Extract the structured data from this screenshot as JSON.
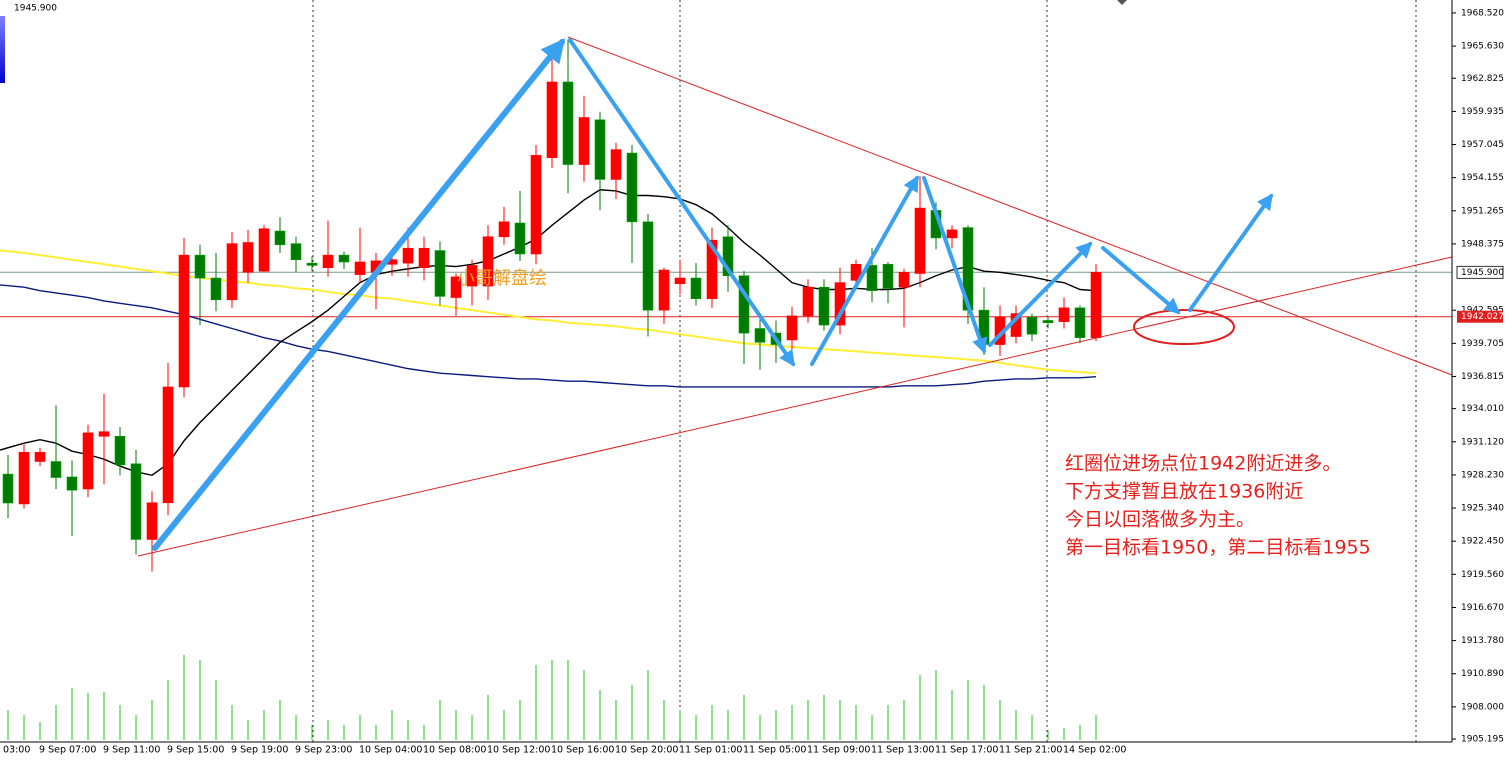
{
  "chart_data": {
    "type": "candlestick",
    "x_label_clipped": "03:00",
    "categories": [
      null,
      null,
      "9 Sep 07:00",
      null,
      null,
      null,
      "9 Sep 11:00",
      null,
      null,
      null,
      "9 Sep 15:00",
      null,
      null,
      null,
      "9 Sep 19:00",
      null,
      null,
      null,
      "9 Sep 23:00",
      null,
      null,
      null,
      "10 Sep 04:00",
      null,
      null,
      null,
      "10 Sep 08:00",
      null,
      null,
      null,
      "10 Sep 12:00",
      null,
      null,
      null,
      "10 Sep 16:00",
      null,
      null,
      null,
      "10 Sep 20:00",
      null,
      null,
      null,
      "11 Sep 01:00",
      null,
      null,
      null,
      "11 Sep 05:00",
      null,
      null,
      null,
      "11 Sep 09:00",
      null,
      null,
      null,
      "11 Sep 13:00",
      null,
      null,
      null,
      "11 Sep 17:00",
      null,
      null,
      null,
      "11 Sep 21:00",
      null,
      null,
      null,
      "14 Sep 02:00",
      null,
      null
    ],
    "open": [
      1928.3,
      1925.7,
      1929.4,
      1929.4,
      1928.05,
      1927.0,
      1931.6,
      1931.6,
      1929.2,
      1922.6,
      1925.8,
      1935.9,
      1947.4,
      1945.4,
      1943.5,
      1945.9,
      1946.0,
      1949.5,
      1948.4,
      1946.7,
      1946.3,
      1947.4,
      1945.7,
      1945.9,
      1946.6,
      1946.7,
      1946.3,
      1947.8,
      1943.7,
      1944.7,
      1944.7,
      1949.0,
      1950.2,
      1947.5,
      1955.9,
      1962.5,
      1955.3,
      1959.2,
      1954.0,
      1956.3,
      1950.3,
      1942.6,
      1944.9,
      1945.4,
      1943.6,
      1949.0,
      1945.6,
      1941.0,
      1940.6,
      1940.0,
      1942.1,
      1944.6,
      1941.3,
      1945.2,
      1946.5,
      1946.6,
      1944.6,
      1945.8,
      1951.3,
      1948.9,
      1949.8,
      1942.6,
      1939.6,
      1940.3,
      1942.0,
      1941.7,
      1941.6,
      1942.8,
      1940.2
    ],
    "high": [
      1929.97,
      1930.9,
      1930.6,
      1934.3,
      1929.5,
      1932.6,
      1935.3,
      1932.4,
      1930.4,
      1926.8,
      1938.0,
      1948.9,
      1948.3,
      1947.6,
      1949.4,
      1949.6,
      1950.0,
      1950.7,
      1949.0,
      1947.3,
      1950.4,
      1947.7,
      1949.8,
      1947.6,
      1947.6,
      1949.8,
      1949.0,
      1948.6,
      1945.8,
      1947.0,
      1950.0,
      1951.6,
      1953.0,
      1957.0,
      1965.3,
      1966.2,
      1961.3,
      1959.9,
      1957.2,
      1957.0,
      1951.0,
      1946.3,
      1947.0,
      1946.7,
      1949.8,
      1950.0,
      1946.0,
      1941.8,
      1941.7,
      1942.9,
      1945.3,
      1945.3,
      1946.3,
      1947.0,
      1948.0,
      1946.8,
      1946.2,
      1954.3,
      1952.0,
      1950.0,
      1950.0,
      1944.6,
      1943.0,
      1943.0,
      1942.3,
      1942.0,
      1943.7,
      1943.0,
      1946.6
    ],
    "low": [
      1924.47,
      1925.3,
      1929.0,
      1927.0,
      1922.9,
      1926.3,
      1927.4,
      1928.2,
      1921.3,
      1919.8,
      1924.7,
      1935.0,
      1941.3,
      1942.5,
      1942.8,
      1945.0,
      1945.9,
      1947.6,
      1945.9,
      1946.0,
      1945.5,
      1946.2,
      1945.0,
      1942.7,
      1945.6,
      1945.5,
      1945.2,
      1943.0,
      1942.1,
      1943.0,
      1943.5,
      1948.3,
      1946.9,
      1946.6,
      1955.0,
      1952.8,
      1953.8,
      1951.3,
      1952.3,
      1946.7,
      1940.3,
      1941.4,
      1944.0,
      1943.0,
      1942.8,
      1944.2,
      1937.9,
      1937.4,
      1938.0,
      1937.8,
      1941.5,
      1940.8,
      1940.5,
      1944.4,
      1943.3,
      1943.2,
      1941.1,
      1944.6,
      1947.9,
      1948.0,
      1941.4,
      1938.7,
      1938.6,
      1939.7,
      1939.9,
      1941.0,
      1941.0,
      1939.7,
      1939.9
    ],
    "close": [
      1925.78,
      1930.2,
      1930.2,
      1928.0,
      1926.9,
      1931.9,
      1932.0,
      1929.1,
      1922.6,
      1925.8,
      1935.9,
      1947.4,
      1945.4,
      1943.5,
      1948.4,
      1948.5,
      1949.7,
      1948.3,
      1947.0,
      1946.5,
      1947.4,
      1946.8,
      1946.8,
      1946.9,
      1947.0,
      1948.0,
      1948.0,
      1943.8,
      1945.5,
      1946.5,
      1949.0,
      1950.3,
      1947.5,
      1956.1,
      1962.5,
      1955.3,
      1959.4,
      1954.0,
      1956.6,
      1950.3,
      1942.6,
      1946.1,
      1945.4,
      1943.6,
      1948.7,
      1945.6,
      1940.6,
      1939.8,
      1939.6,
      1942.1,
      1944.6,
      1941.3,
      1945.0,
      1946.6,
      1944.3,
      1944.5,
      1945.9,
      1951.5,
      1948.9,
      1949.6,
      1942.6,
      1939.6,
      1942.0,
      1942.3,
      1940.5,
      1941.5,
      1942.8,
      1940.2,
      1945.9
    ],
    "volume": [
      30,
      25,
      18,
      35,
      52,
      47,
      48,
      35,
      25,
      40,
      60,
      85,
      80,
      60,
      35,
      20,
      30,
      40,
      25,
      15,
      20,
      15,
      25,
      15,
      30,
      20,
      15,
      40,
      30,
      25,
      45,
      30,
      40,
      75,
      80,
      80,
      70,
      50,
      40,
      55,
      70,
      40,
      30,
      25,
      35,
      30,
      45,
      25,
      30,
      35,
      40,
      45,
      40,
      35,
      25,
      35,
      40,
      65,
      70,
      50,
      60,
      55,
      40,
      30,
      25,
      10,
      12,
      15,
      25
    ],
    "up_color": "#ff0000",
    "down_color": "#007a00",
    "volume_color": "#22c022",
    "series": [
      {
        "color": "#ffee33",
        "values": [
          1947.8,
          1947.6,
          1947.4,
          1947.2,
          1947.0,
          1946.8,
          1946.6,
          1946.4,
          1946.2,
          1946.0,
          1945.8,
          1945.6,
          1945.4,
          1945.3,
          1945.1,
          1945.0,
          1944.8,
          1944.7,
          1944.5,
          1944.4,
          1944.2,
          1944.0,
          1943.9,
          1943.7,
          1943.6,
          1943.4,
          1943.2,
          1943.0,
          1942.8,
          1942.6,
          1942.4,
          1942.2,
          1942.0,
          1941.8,
          1941.7,
          1941.5,
          1941.4,
          1941.3,
          1941.2,
          1941.0,
          1940.9,
          1940.7,
          1940.5,
          1940.3,
          1940.1,
          1939.9,
          1939.7,
          1939.6,
          1939.5,
          1939.4,
          1939.3,
          1939.2,
          1939.1,
          1939.0,
          1938.9,
          1938.8,
          1938.7,
          1938.6,
          1938.5,
          1938.4,
          1938.3,
          1938.2,
          1938.0,
          1937.8,
          1937.6,
          1937.4,
          1937.3,
          1937.2,
          1937.1
        ]
      },
      {
        "color": "#0a1a80",
        "values": [
          1944.8,
          1944.6,
          1944.3,
          1944.1,
          1943.9,
          1943.7,
          1943.4,
          1943.2,
          1943.0,
          1942.8,
          1942.5,
          1942.2,
          1941.8,
          1941.4,
          1941.0,
          1940.6,
          1940.2,
          1939.9,
          1939.5,
          1939.2,
          1939.0,
          1938.7,
          1938.4,
          1938.1,
          1937.8,
          1937.5,
          1937.3,
          1937.1,
          1937.0,
          1936.9,
          1936.8,
          1936.7,
          1936.6,
          1936.6,
          1936.5,
          1936.4,
          1936.4,
          1936.3,
          1936.2,
          1936.1,
          1936.0,
          1936.0,
          1935.9,
          1935.9,
          1935.9,
          1935.9,
          1935.9,
          1935.9,
          1935.9,
          1935.9,
          1935.9,
          1935.9,
          1935.9,
          1935.9,
          1935.9,
          1935.9,
          1936.0,
          1936.0,
          1936.0,
          1936.1,
          1936.2,
          1936.4,
          1936.5,
          1936.6,
          1936.6,
          1936.7,
          1936.7,
          1936.7,
          1936.8
        ]
      },
      {
        "color": "#000000",
        "values": [
          1930.4,
          1931.0,
          1931.3,
          1931.0,
          1930.3,
          1930.0,
          1929.6,
          1929.0,
          1928.5,
          1928.2,
          1929.2,
          1931.2,
          1932.8,
          1934.2,
          1935.6,
          1937.0,
          1938.4,
          1939.8,
          1940.7,
          1941.6,
          1942.6,
          1943.8,
          1945.0,
          1945.7,
          1946.0,
          1946.2,
          1946.4,
          1946.5,
          1946.4,
          1946.6,
          1946.9,
          1947.5,
          1948.1,
          1948.8,
          1950.0,
          1951.1,
          1952.2,
          1953.1,
          1953.0,
          1952.6,
          1952.6,
          1952.5,
          1952.3,
          1951.8,
          1951.0,
          1949.8,
          1948.5,
          1947.4,
          1946.2,
          1945.0,
          1944.6,
          1944.4,
          1944.4,
          1944.5,
          1944.4,
          1944.4,
          1944.5,
          1945.0,
          1945.6,
          1946.1,
          1946.4,
          1946.0,
          1945.9,
          1945.7,
          1945.5,
          1945.2,
          1945.0,
          1944.4,
          1944.3
        ]
      }
    ],
    "ylim": [
      1905.11,
      1969.65
    ],
    "yticks": [
      {
        "value": 1968.52,
        "label": "1968.520"
      },
      {
        "value": 1965.63,
        "label": "1965.630"
      },
      {
        "value": 1962.825,
        "label": "1962.825"
      },
      {
        "value": 1959.935,
        "label": "1959.935"
      },
      {
        "value": 1957.045,
        "label": "1957.045"
      },
      {
        "value": 1954.155,
        "label": "1954.155"
      },
      {
        "value": 1951.265,
        "label": "1951.265"
      },
      {
        "value": 1948.375,
        "label": "1948.375"
      },
      {
        "value": 1942.595,
        "label": "1942.595"
      },
      {
        "value": 1939.705,
        "label": "1939.705"
      },
      {
        "value": 1936.815,
        "label": "1936.815"
      },
      {
        "value": 1934.01,
        "label": "1934.010"
      },
      {
        "value": 1931.12,
        "label": "1931.120"
      },
      {
        "value": 1928.23,
        "label": "1928.230"
      },
      {
        "value": 1925.34,
        "label": "1925.340"
      },
      {
        "value": 1922.45,
        "label": "1922.450"
      },
      {
        "value": 1919.56,
        "label": "1919.560"
      },
      {
        "value": 1916.67,
        "label": "1916.670"
      },
      {
        "value": 1913.78,
        "label": "1913.780"
      },
      {
        "value": 1910.89,
        "label": "1910.890"
      },
      {
        "value": 1908.0,
        "label": "1908.000"
      },
      {
        "value": 1905.195,
        "label": "1905.195"
      }
    ],
    "current_price": {
      "value": 1945.9,
      "label": "1945.900"
    },
    "level_line": {
      "value": 1942.027,
      "label": "1942.027"
    },
    "watermark": "小哥解盘绘",
    "notes": [
      "红圈位进场点位1942附近进多。",
      "下方支撑暂且放在1936附近",
      "今日以回落做多为主。",
      "第一目标看1950，第二目标看1955"
    ]
  }
}
